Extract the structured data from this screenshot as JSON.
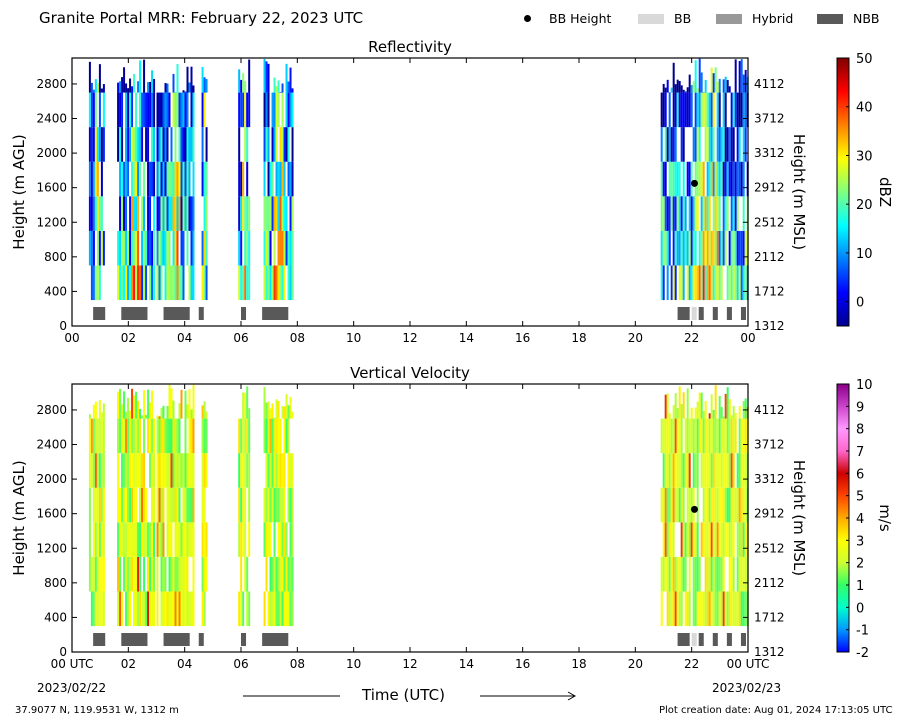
{
  "header": {
    "title": "Granite Portal MRR:  February 22, 2023 UTC",
    "legend": [
      {
        "label": "BB Height",
        "marker": "dot",
        "color": "#000000"
      },
      {
        "label": "BB",
        "marker": "box",
        "color": "#d9d9d9"
      },
      {
        "label": "Hybrid",
        "marker": "box",
        "color": "#999999"
      },
      {
        "label": "NBB",
        "marker": "box",
        "color": "#595959"
      }
    ]
  },
  "footer": {
    "location": "37.9077 N, 119.9531 W, 1312 m",
    "creation": "Plot creation date: Aug 01, 2024 17:13:05 UTC",
    "xlabel": "Time (UTC)",
    "start_date": "2023/02/22",
    "end_date": "2023/02/23"
  },
  "chart_data": [
    {
      "type": "heatmap",
      "title": "Reflectivity",
      "ylabel": "Height (m AGL)",
      "ylabel_right": "Height (m MSL)",
      "colorbar_label": "dBZ",
      "x_range": [
        0,
        24
      ],
      "y_range": [
        0,
        3100
      ],
      "x_ticks": [
        "00",
        "02",
        "04",
        "06",
        "08",
        "10",
        "12",
        "14",
        "16",
        "18",
        "20",
        "22",
        "00"
      ],
      "y_ticks": [
        0,
        400,
        800,
        1200,
        1600,
        2000,
        2400,
        2800
      ],
      "y_ticks_right": [
        "1312",
        "1712",
        "2112",
        "2512",
        "2912",
        "3312",
        "3712",
        "4112"
      ],
      "colorbar_ticks": [
        "0",
        "10",
        "20",
        "30",
        "40",
        "50"
      ],
      "colorbar_range": [
        -5,
        50
      ],
      "colorbar_colors": [
        "#00008f",
        "#0000ff",
        "#0080ff",
        "#00ffff",
        "#80ff80",
        "#ffff00",
        "#ff8000",
        "#ff0000",
        "#800000"
      ],
      "precip_periods_utc": [
        [
          0.6,
          1.1
        ],
        [
          1.6,
          2.9
        ],
        [
          3.0,
          4.3
        ],
        [
          4.6,
          4.8
        ],
        [
          5.9,
          6.3
        ],
        [
          6.8,
          7.8
        ],
        [
          20.9,
          24.0
        ]
      ],
      "bright_band_flags": [
        {
          "start": 0.75,
          "end": 1.25,
          "type": "NBB"
        },
        {
          "start": 1.75,
          "end": 2.75,
          "type": "NBB"
        },
        {
          "start": 3.25,
          "end": 4.25,
          "type": "NBB"
        },
        {
          "start": 4.5,
          "end": 4.75,
          "type": "NBB"
        },
        {
          "start": 6.0,
          "end": 6.25,
          "type": "NBB"
        },
        {
          "start": 6.75,
          "end": 7.75,
          "type": "NBB"
        },
        {
          "start": 21.5,
          "end": 22.0,
          "type": "NBB"
        },
        {
          "start": 22.0,
          "end": 22.25,
          "type": "BB"
        },
        {
          "start": 22.25,
          "end": 22.5,
          "type": "NBB"
        },
        {
          "start": 22.75,
          "end": 23.0,
          "type": "NBB"
        },
        {
          "start": 23.25,
          "end": 23.5,
          "type": "NBB"
        },
        {
          "start": 23.75,
          "end": 24.0,
          "type": "NBB"
        }
      ],
      "bb_height_points": [
        {
          "time_utc": 22.1,
          "height_m_agl": 1650
        }
      ]
    },
    {
      "type": "heatmap",
      "title": "Vertical Velocity",
      "ylabel": "Height (m AGL)",
      "ylabel_right": "Height (m MSL)",
      "colorbar_label": "m/s",
      "x_range": [
        0,
        24
      ],
      "y_range": [
        0,
        3100
      ],
      "x_ticks": [
        "00 UTC",
        "02",
        "04",
        "06",
        "08",
        "10",
        "12",
        "14",
        "16",
        "18",
        "20",
        "22",
        "00 UTC"
      ],
      "y_ticks": [
        0,
        400,
        800,
        1200,
        1600,
        2000,
        2400,
        2800
      ],
      "y_ticks_right": [
        "1312",
        "1712",
        "2112",
        "2512",
        "2912",
        "3312",
        "3712",
        "4112"
      ],
      "colorbar_ticks": [
        "-2",
        "-1",
        "0",
        "1",
        "2",
        "3",
        "4",
        "5",
        "6",
        "7",
        "8",
        "9",
        "10"
      ],
      "colorbar_range": [
        -2,
        10
      ],
      "colorbar_colors": [
        "#0000ff",
        "#0099ff",
        "#00ffcc",
        "#33ff66",
        "#ccff33",
        "#ffff00",
        "#ffaa00",
        "#ff4400",
        "#cc0000",
        "#ff66cc",
        "#ff99ff",
        "#cc44cc",
        "#880088"
      ],
      "precip_periods_utc": [
        [
          0.6,
          1.1
        ],
        [
          1.6,
          2.9
        ],
        [
          3.0,
          4.3
        ],
        [
          4.6,
          4.8
        ],
        [
          5.9,
          6.3
        ],
        [
          6.8,
          7.8
        ],
        [
          20.9,
          24.0
        ]
      ],
      "bright_band_flags": [
        {
          "start": 0.75,
          "end": 1.25,
          "type": "NBB"
        },
        {
          "start": 1.75,
          "end": 2.75,
          "type": "NBB"
        },
        {
          "start": 3.25,
          "end": 4.25,
          "type": "NBB"
        },
        {
          "start": 4.5,
          "end": 4.75,
          "type": "NBB"
        },
        {
          "start": 6.0,
          "end": 6.25,
          "type": "NBB"
        },
        {
          "start": 6.75,
          "end": 7.75,
          "type": "NBB"
        },
        {
          "start": 21.5,
          "end": 22.0,
          "type": "NBB"
        },
        {
          "start": 22.0,
          "end": 22.25,
          "type": "BB"
        },
        {
          "start": 22.25,
          "end": 22.5,
          "type": "NBB"
        },
        {
          "start": 22.75,
          "end": 23.0,
          "type": "NBB"
        },
        {
          "start": 23.25,
          "end": 23.5,
          "type": "NBB"
        },
        {
          "start": 23.75,
          "end": 24.0,
          "type": "NBB"
        }
      ],
      "bb_height_points": [
        {
          "time_utc": 22.1,
          "height_m_agl": 1650
        }
      ]
    }
  ]
}
